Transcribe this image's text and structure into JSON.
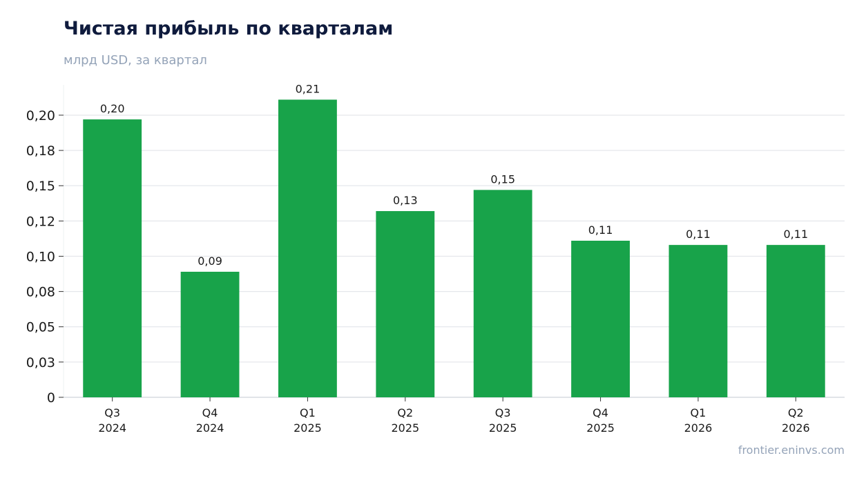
{
  "title": "Чистая прибыль по кварталам",
  "subtitle": "млрд USD, за квартал",
  "source": "frontier.eninvs.com",
  "colors": {
    "bar": "#18a34a",
    "grid": "#e5e7eb",
    "axis": "#cfd4da"
  },
  "chart_data": {
    "type": "bar",
    "categories": [
      [
        "Q3",
        "2024"
      ],
      [
        "Q4",
        "2024"
      ],
      [
        "Q1",
        "2025"
      ],
      [
        "Q2",
        "2025"
      ],
      [
        "Q3",
        "2025"
      ],
      [
        "Q4",
        "2025"
      ],
      [
        "Q1",
        "2026"
      ],
      [
        "Q2",
        "2026"
      ]
    ],
    "values": [
      0.197,
      0.089,
      0.211,
      0.132,
      0.147,
      0.111,
      0.108,
      0.108
    ],
    "data_labels": [
      "0,20",
      "0,09",
      "0,21",
      "0,13",
      "0,15",
      "0,11",
      "0,11",
      "0,11"
    ],
    "yticks": [
      0,
      0.025,
      0.05,
      0.075,
      0.1,
      0.125,
      0.15,
      0.175,
      0.2
    ],
    "ytick_labels": [
      "0",
      "0,03",
      "0,05",
      "0,08",
      "0,10",
      "0,12",
      "0,15",
      "0,18",
      "0,20"
    ],
    "ylim": [
      0,
      0.2215
    ],
    "grid": true
  }
}
